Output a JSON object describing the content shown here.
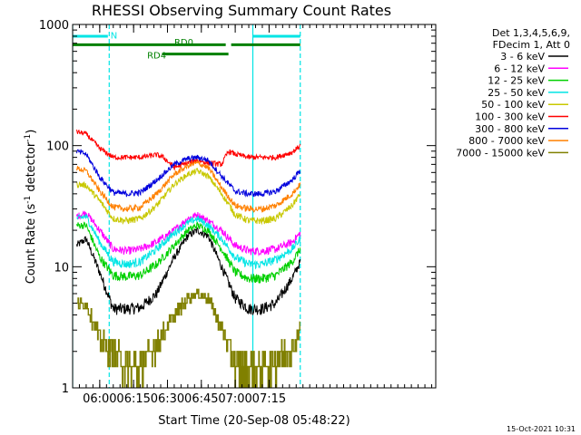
{
  "chart_data": {
    "type": "line",
    "title": "RHESSI Observing Summary Count Rates",
    "xlabel": "Start Time (20-Sep-08 05:48:22)",
    "ylabel_main": "Count Rate (s",
    "ylabel_sup1": "-1",
    "ylabel_mid": " detector",
    "ylabel_sup2": "-1",
    "ylabel_end": ")",
    "yscale": "log",
    "ylim": [
      1,
      1000
    ],
    "xlim_minutes": [
      5.8,
      8.48
    ],
    "x_ticks": [
      {
        "label": "06:00",
        "t": 6.0
      },
      {
        "label": "06:15",
        "t": 6.25
      },
      {
        "label": "06:30",
        "t": 6.5
      },
      {
        "label": "06:45",
        "t": 6.75
      },
      {
        "label": "07:00",
        "t": 7.0
      },
      {
        "label": "07:15",
        "t": 7.25
      }
    ],
    "y_ticks": [
      {
        "label": "1",
        "v": 1
      },
      {
        "label": "10",
        "v": 10
      },
      {
        "label": "100",
        "v": 100
      },
      {
        "label": "1000",
        "v": 1000
      }
    ],
    "legend_header": [
      "Det 1,3,4,5,6,9,",
      "FDecim 1, Att 0"
    ],
    "series": [
      {
        "name": "3 - 6 keV",
        "color": "#000000",
        "points": [
          [
            5.83,
            15
          ],
          [
            5.9,
            17
          ],
          [
            6.0,
            9
          ],
          [
            6.1,
            4.5
          ],
          [
            6.2,
            4.5
          ],
          [
            6.3,
            4.6
          ],
          [
            6.42,
            6
          ],
          [
            6.55,
            12
          ],
          [
            6.65,
            18
          ],
          [
            6.72,
            20
          ],
          [
            6.8,
            18
          ],
          [
            6.9,
            10
          ],
          [
            7.0,
            5.5
          ],
          [
            7.1,
            4.5
          ],
          [
            7.2,
            4.5
          ],
          [
            7.3,
            5
          ],
          [
            7.42,
            8
          ],
          [
            7.48,
            11
          ]
        ]
      },
      {
        "name": "6 - 12 keV",
        "color": "#ff00ff",
        "points": [
          [
            5.83,
            26
          ],
          [
            5.9,
            28
          ],
          [
            6.0,
            20
          ],
          [
            6.1,
            14
          ],
          [
            6.2,
            13.5
          ],
          [
            6.3,
            14
          ],
          [
            6.42,
            16
          ],
          [
            6.55,
            20
          ],
          [
            6.65,
            25
          ],
          [
            6.72,
            27
          ],
          [
            6.8,
            24
          ],
          [
            6.9,
            20
          ],
          [
            7.0,
            15
          ],
          [
            7.1,
            13.5
          ],
          [
            7.2,
            13.5
          ],
          [
            7.3,
            14
          ],
          [
            7.42,
            16
          ],
          [
            7.48,
            19
          ]
        ]
      },
      {
        "name": "12 - 25 keV",
        "color": "#00d000",
        "points": [
          [
            5.83,
            22
          ],
          [
            5.9,
            22
          ],
          [
            6.0,
            12
          ],
          [
            6.1,
            8.5
          ],
          [
            6.2,
            8.3
          ],
          [
            6.3,
            8.5
          ],
          [
            6.42,
            10.5
          ],
          [
            6.55,
            15
          ],
          [
            6.65,
            20
          ],
          [
            6.72,
            22
          ],
          [
            6.8,
            20
          ],
          [
            6.9,
            14
          ],
          [
            7.0,
            9
          ],
          [
            7.1,
            8
          ],
          [
            7.2,
            8
          ],
          [
            7.3,
            8.5
          ],
          [
            7.42,
            11
          ],
          [
            7.48,
            14
          ]
        ]
      },
      {
        "name": "25 - 50 keV",
        "color": "#00e5e5",
        "points": [
          [
            5.83,
            25
          ],
          [
            5.9,
            26
          ],
          [
            6.0,
            16
          ],
          [
            6.1,
            11
          ],
          [
            6.2,
            10.5
          ],
          [
            6.3,
            11
          ],
          [
            6.42,
            14
          ],
          [
            6.55,
            19
          ],
          [
            6.65,
            23
          ],
          [
            6.72,
            25
          ],
          [
            6.8,
            22
          ],
          [
            6.9,
            17
          ],
          [
            7.0,
            12
          ],
          [
            7.1,
            10.5
          ],
          [
            7.2,
            10.5
          ],
          [
            7.3,
            11.5
          ],
          [
            7.42,
            14
          ],
          [
            7.48,
            17
          ]
        ]
      },
      {
        "name": "50 - 100 keV",
        "color": "#c8c800",
        "points": [
          [
            5.83,
            48
          ],
          [
            5.9,
            47
          ],
          [
            6.0,
            35
          ],
          [
            6.1,
            25
          ],
          [
            6.2,
            24
          ],
          [
            6.3,
            25
          ],
          [
            6.42,
            32
          ],
          [
            6.55,
            48
          ],
          [
            6.65,
            58
          ],
          [
            6.72,
            62
          ],
          [
            6.8,
            56
          ],
          [
            6.9,
            40
          ],
          [
            7.0,
            27
          ],
          [
            7.1,
            24
          ],
          [
            7.2,
            24
          ],
          [
            7.3,
            25
          ],
          [
            7.42,
            32
          ],
          [
            7.48,
            40
          ]
        ]
      },
      {
        "name": "100 - 300 keV",
        "color": "#ff0000",
        "points": [
          [
            5.83,
            130
          ],
          [
            5.9,
            125
          ],
          [
            6.0,
            95
          ],
          [
            6.1,
            80
          ],
          [
            6.2,
            80
          ],
          [
            6.3,
            80
          ],
          [
            6.42,
            84
          ],
          [
            6.47,
            80
          ],
          [
            6.55,
            66
          ],
          [
            6.65,
            72
          ],
          [
            6.72,
            76
          ],
          [
            6.8,
            72
          ],
          [
            6.9,
            70
          ],
          [
            6.95,
            90
          ],
          [
            7.0,
            85
          ],
          [
            7.1,
            80
          ],
          [
            7.2,
            80
          ],
          [
            7.3,
            80
          ],
          [
            7.42,
            88
          ],
          [
            7.48,
            100
          ]
        ]
      },
      {
        "name": "300 - 800 keV",
        "color": "#0000dd",
        "points": [
          [
            5.83,
            90
          ],
          [
            5.9,
            85
          ],
          [
            6.0,
            55
          ],
          [
            6.1,
            41
          ],
          [
            6.2,
            40
          ],
          [
            6.3,
            41
          ],
          [
            6.42,
            52
          ],
          [
            6.55,
            70
          ],
          [
            6.65,
            78
          ],
          [
            6.72,
            80
          ],
          [
            6.8,
            76
          ],
          [
            6.9,
            56
          ],
          [
            7.0,
            42
          ],
          [
            7.1,
            40
          ],
          [
            7.2,
            40
          ],
          [
            7.3,
            42
          ],
          [
            7.42,
            52
          ],
          [
            7.48,
            62
          ]
        ]
      },
      {
        "name": "800 - 7000 keV",
        "color": "#ff8000",
        "points": [
          [
            5.83,
            65
          ],
          [
            5.9,
            62
          ],
          [
            6.0,
            42
          ],
          [
            6.1,
            31
          ],
          [
            6.2,
            30
          ],
          [
            6.3,
            31
          ],
          [
            6.42,
            40
          ],
          [
            6.55,
            58
          ],
          [
            6.65,
            68
          ],
          [
            6.72,
            72
          ],
          [
            6.8,
            66
          ],
          [
            6.9,
            45
          ],
          [
            7.0,
            32
          ],
          [
            7.1,
            30
          ],
          [
            7.2,
            30
          ],
          [
            7.3,
            32
          ],
          [
            7.42,
            40
          ],
          [
            7.48,
            48
          ]
        ]
      },
      {
        "name": "7000 - 15000 keV",
        "color": "#808000",
        "points": [
          [
            5.83,
            5
          ],
          [
            5.9,
            5
          ],
          [
            6.0,
            2.5
          ],
          [
            6.1,
            2
          ],
          [
            6.2,
            1.5
          ],
          [
            6.3,
            1.5
          ],
          [
            6.42,
            2.3
          ],
          [
            6.55,
            4
          ],
          [
            6.65,
            5.5
          ],
          [
            6.72,
            6
          ],
          [
            6.8,
            5.5
          ],
          [
            6.9,
            3.2
          ],
          [
            7.0,
            1.5
          ],
          [
            7.1,
            1.5
          ],
          [
            7.2,
            1.5
          ],
          [
            7.3,
            1.7
          ],
          [
            7.42,
            2.2
          ],
          [
            7.48,
            3
          ]
        ]
      }
    ],
    "vertical_markers": [
      {
        "t": 5.8,
        "color": "#00e5e5",
        "style": "solid"
      },
      {
        "t": 6.07,
        "color": "#00e5e5",
        "style": "dashed"
      },
      {
        "t": 7.13,
        "color": "#00e5e5",
        "style": "solid"
      },
      {
        "t": 7.48,
        "color": "#00e5e5",
        "style": "dashed"
      }
    ],
    "bars": [
      {
        "label": "N",
        "color": "#00e5e5",
        "y": 800,
        "segments": [
          [
            5.8,
            6.06
          ],
          [
            7.13,
            7.48
          ]
        ]
      },
      {
        "label": "RD0",
        "color": "#008000",
        "y": 680,
        "segments": [
          [
            5.8,
            6.93
          ],
          [
            6.97,
            7.48
          ]
        ]
      },
      {
        "label": "RD4",
        "color": "#008000",
        "y": 570,
        "segments": [
          [
            6.46,
            6.95
          ]
        ]
      }
    ],
    "bar_labels": [
      {
        "text": "N",
        "t": 6.08,
        "y": 820,
        "color": "#00e5e5"
      },
      {
        "text": "RD0",
        "t": 6.55,
        "y": 720,
        "color": "#008000"
      },
      {
        "text": "RD4",
        "t": 6.35,
        "y": 560,
        "color": "#008000"
      }
    ]
  },
  "footer": {
    "timestamp": "15-Oct-2021 10:31"
  }
}
